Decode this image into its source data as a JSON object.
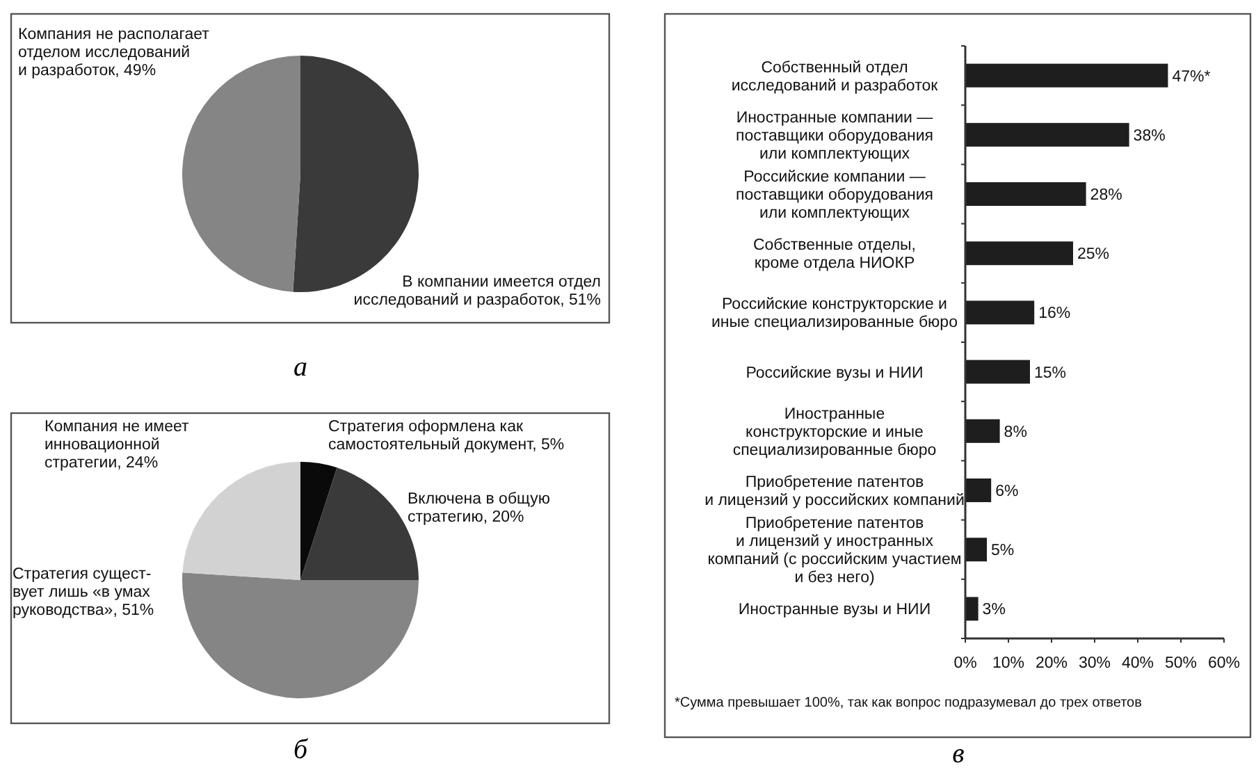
{
  "chart_data": [
    {
      "type": "pie",
      "title": "а",
      "categories": [
        "В компании имеется отдел\nисследований и разработок",
        "Компания не располагает\nотделом исследований\nи разработок"
      ],
      "values": [
        51,
        49
      ],
      "value_labels": [
        "51%",
        "49%"
      ],
      "colors": [
        "#3a3a3a",
        "#858585"
      ]
    },
    {
      "type": "pie",
      "title": "б",
      "categories": [
        "Стратегия оформлена как\nсамостоятельный документ",
        "Включена в общую\nстратегию",
        "Стратегия сущест-\nвует лишь «в умах\nруководства»",
        "Компания не имеет\nинновационной\nстратегии"
      ],
      "values": [
        5,
        20,
        51,
        24
      ],
      "value_labels": [
        "5%",
        "20%",
        "51%",
        "24%"
      ],
      "colors": [
        "#0a0a0a",
        "#3a3a3a",
        "#858585",
        "#d2d2d2"
      ]
    },
    {
      "type": "bar",
      "orientation": "horizontal",
      "title": "в",
      "categories": [
        "Собственный отдел\nисследований и разработок",
        "Иностранные компании —\nпоставщики оборудования\nили комплектующих",
        "Российские компании —\nпоставщики оборудования\nили комплектующих",
        "Собственные отделы,\nкроме отдела НИОКР",
        "Российские конструкторские и\nиные специализированные бюро",
        "Российские вузы и НИИ",
        "Иностранные\nконструкторские и иные\nспециализированные бюро",
        "Приобретение патентов\nи лицензий у российских компаний",
        "Приобретение патентов\nи лицензий у иностранных\nкомпаний (с российским участием\nи без него)",
        "Иностранные вузы и НИИ"
      ],
      "values": [
        47,
        38,
        28,
        25,
        16,
        15,
        8,
        6,
        5,
        3
      ],
      "value_labels": [
        "47%*",
        "38%",
        "28%",
        "25%",
        "16%",
        "15%",
        "8%",
        "6%",
        "5%",
        "3%"
      ],
      "color": "#1e1e1e",
      "xlim": [
        0,
        60
      ],
      "xticks": [
        {
          "value": 0,
          "label": "0%"
        },
        {
          "value": 10,
          "label": "10%"
        },
        {
          "value": 20,
          "label": "20%"
        },
        {
          "value": 30,
          "label": "30%"
        },
        {
          "value": 40,
          "label": "40%"
        },
        {
          "value": 50,
          "label": "50%"
        },
        {
          "value": 60,
          "label": "60%"
        }
      ],
      "annotations": [
        "*Сумма превышает 100%, так как вопрос подразумевал до трех ответов"
      ]
    }
  ]
}
